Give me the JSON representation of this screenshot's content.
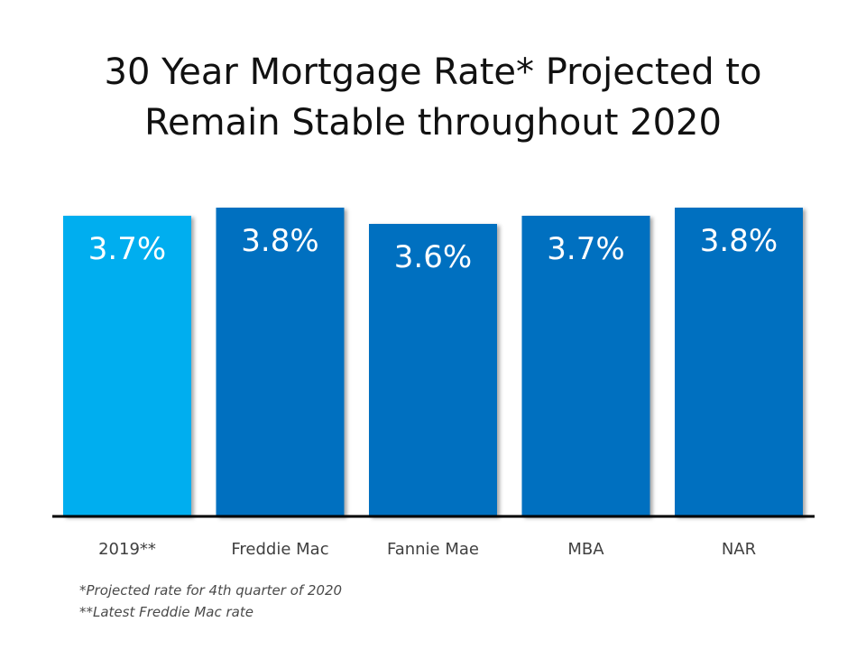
{
  "chart_data": {
    "type": "bar",
    "title_lines": [
      "30 Year Mortgage Rate* Projected to",
      "Remain Stable throughout 2020"
    ],
    "categories": [
      "2019**",
      "Freddie Mac",
      "Fannie Mae",
      "MBA",
      "NAR"
    ],
    "values": [
      3.7,
      3.8,
      3.6,
      3.7,
      3.8
    ],
    "value_labels": [
      "3.7%",
      "3.8%",
      "3.6%",
      "3.7%",
      "3.8%"
    ],
    "ylim": [
      0,
      4.0
    ],
    "grid": false,
    "legend": "none",
    "colors": {
      "highlight": "#00aeef",
      "bar": "#0070c0",
      "axis": "#000000"
    },
    "bar_color_keys": [
      "highlight",
      "bar",
      "bar",
      "bar",
      "bar"
    ]
  },
  "footnotes": [
    "*Projected rate for 4th quarter of 2020",
    "**Latest Freddie Mac rate"
  ]
}
